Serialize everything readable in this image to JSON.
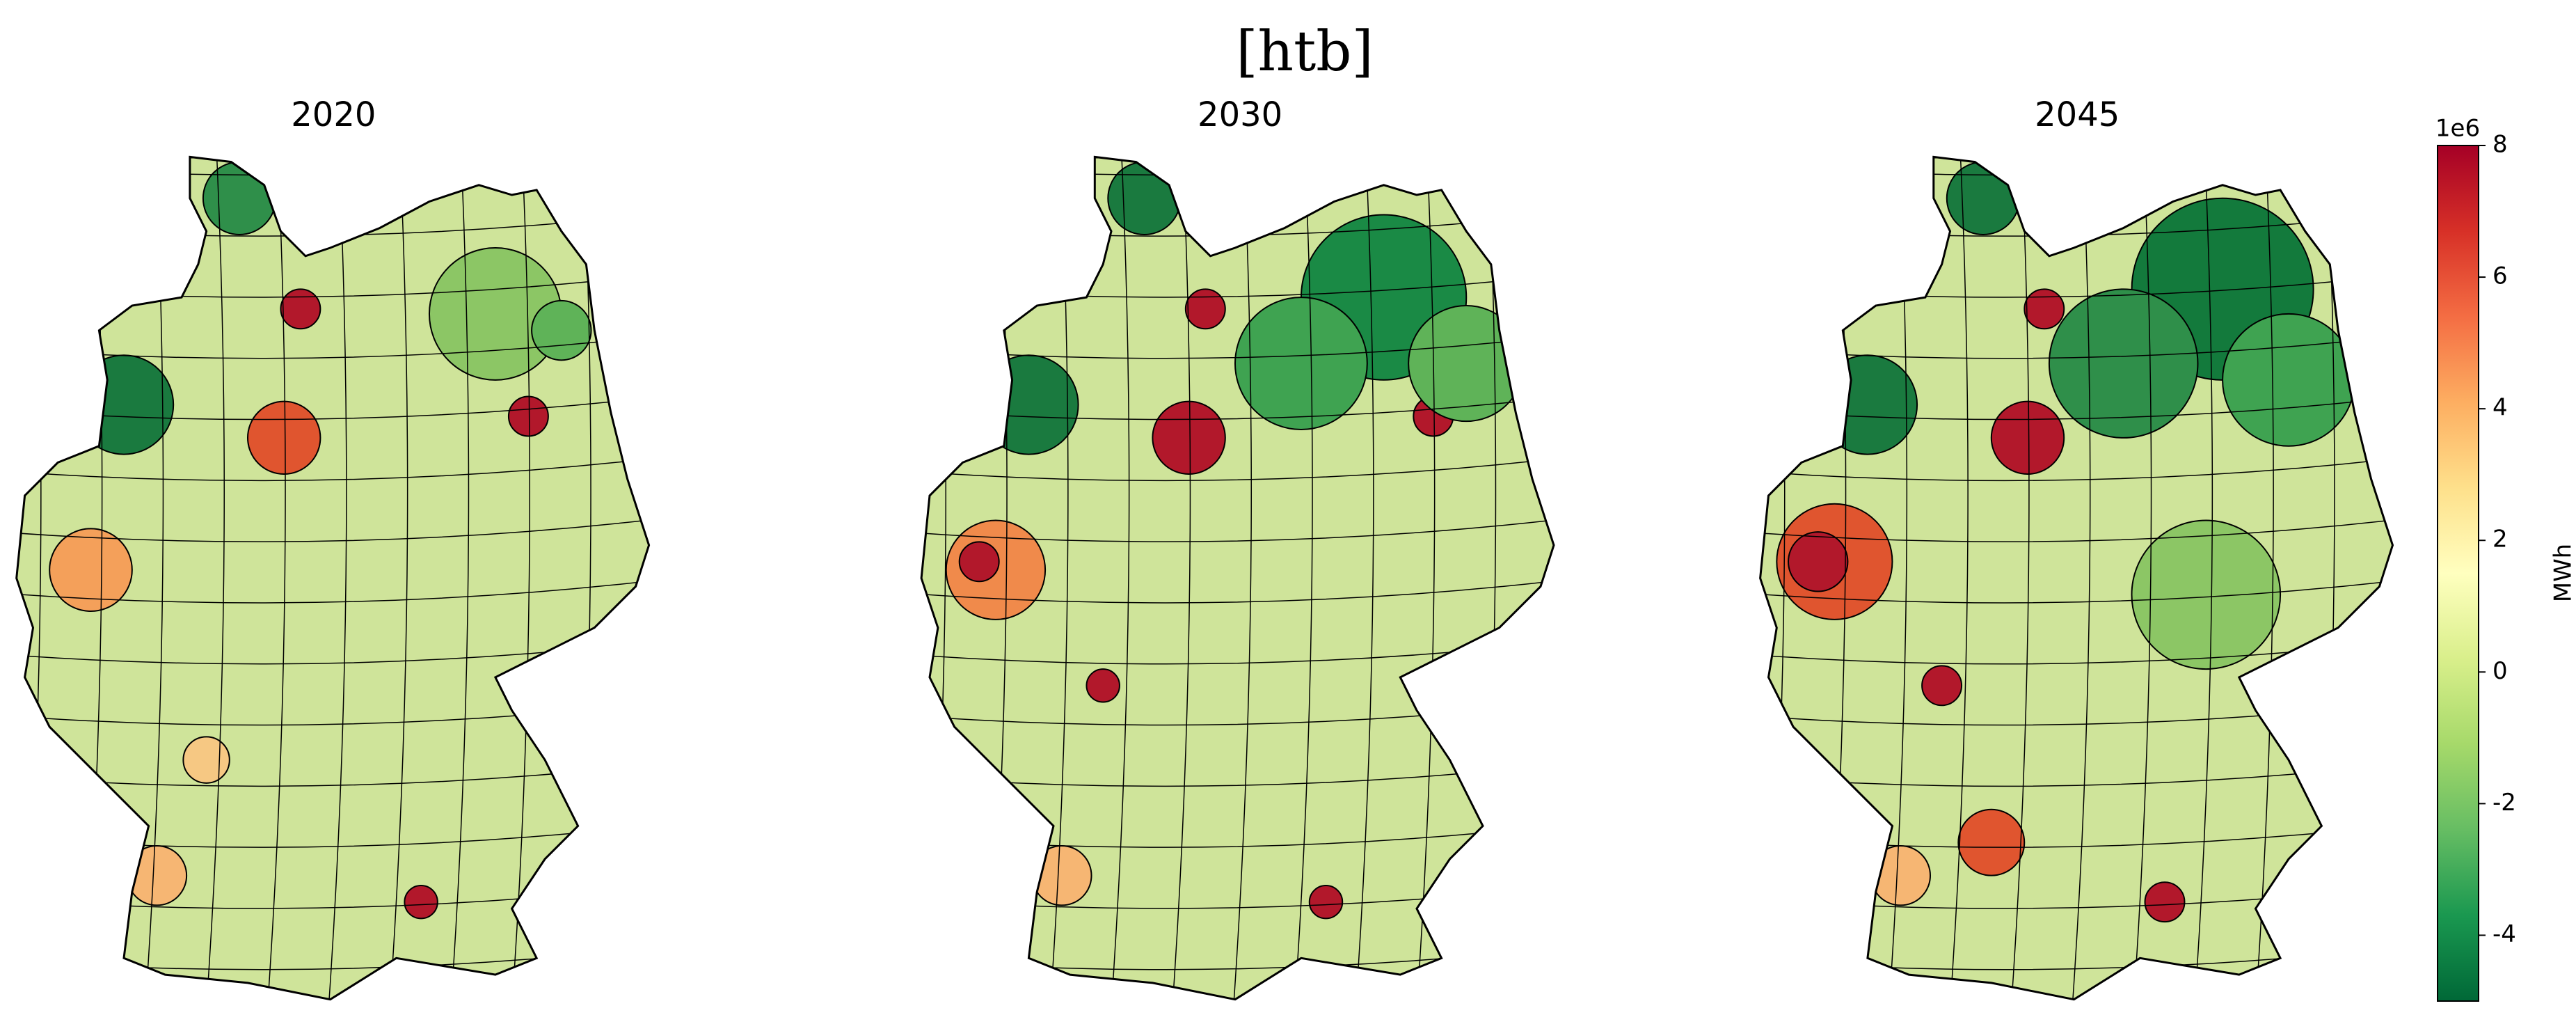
{
  "title": "[htb]",
  "maps": [
    {
      "title": "2020"
    },
    {
      "title": "2030"
    },
    {
      "title": "2045"
    }
  ],
  "colorbar": {
    "label": "MWh",
    "offset_label": "1e6",
    "colormap": "RdYlGn_r",
    "lim": [
      -5,
      8
    ],
    "ticks": [
      -4,
      -2,
      0,
      2,
      4,
      6,
      8
    ]
  }
}
